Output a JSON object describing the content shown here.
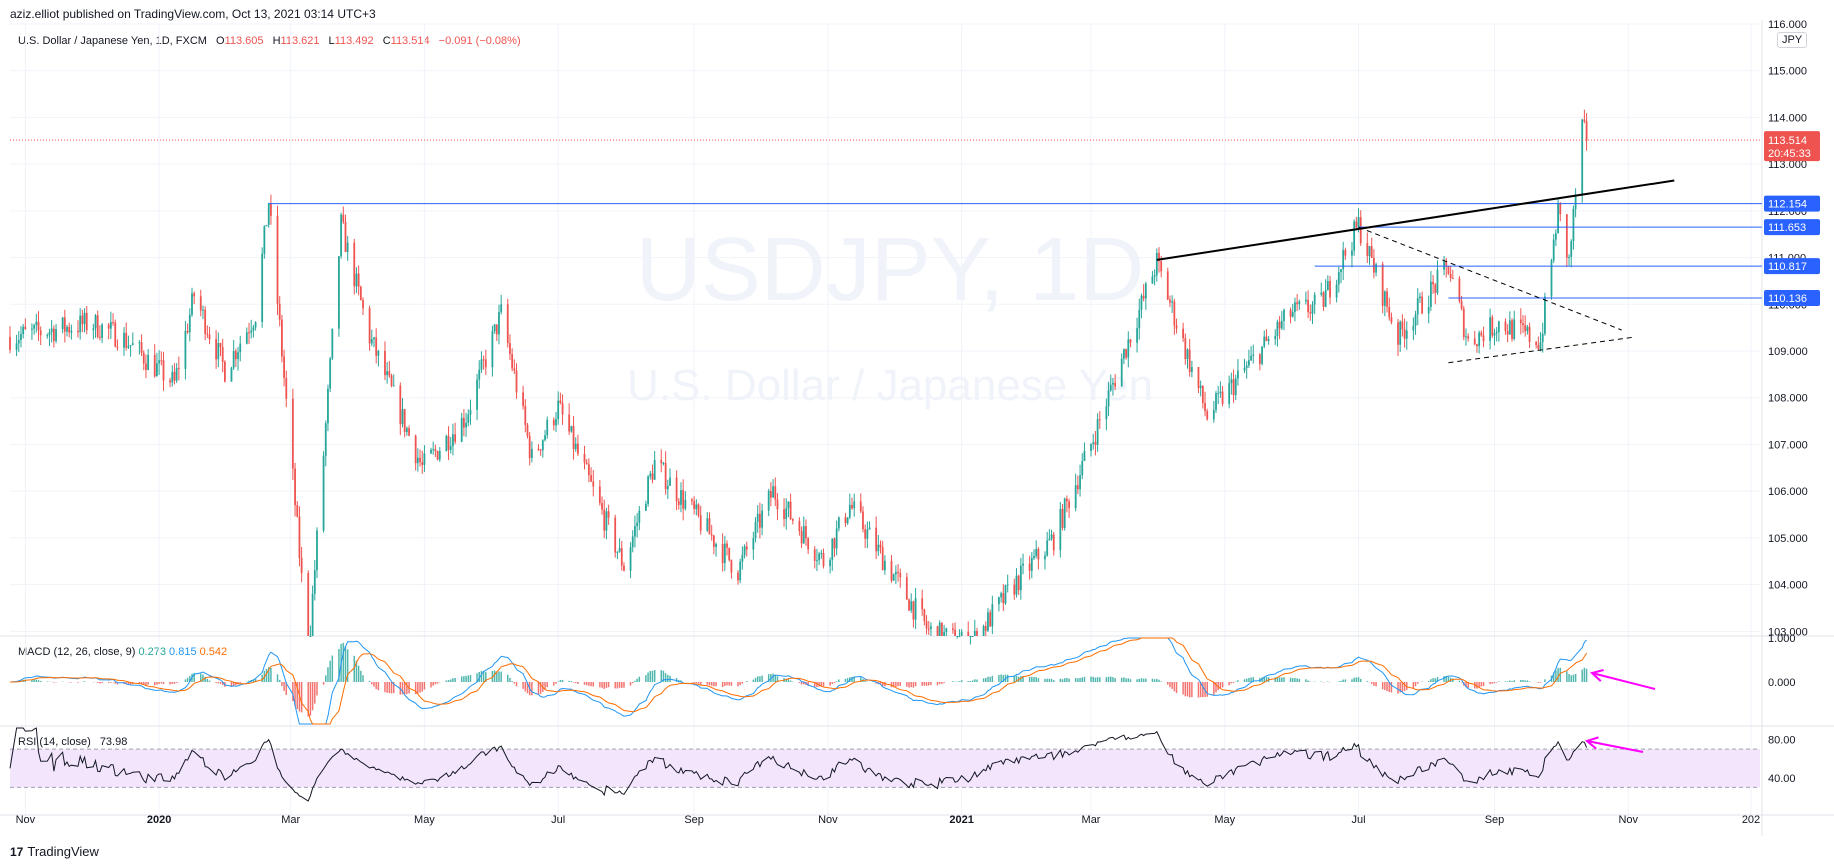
{
  "header": {
    "publish_line": "aziz.elliot published on TradingView.com, Oct 13, 2021 03:14 UTC+3"
  },
  "legend": {
    "symbol": "U.S. Dollar / Japanese Yen, 1D, FXCM",
    "open_label": "O",
    "open": "113.605",
    "high_label": "H",
    "high": "113.621",
    "low_label": "L",
    "low": "113.492",
    "close_label": "C",
    "close": "113.514",
    "change": "−0.091 (−0.08%)"
  },
  "watermark": {
    "ticker": "USDJPY, 1D",
    "name": "U.S. Dollar / Japanese Yen"
  },
  "currency_button": "JPY",
  "macd_legend": {
    "label": "MACD (12, 26, close, 9)",
    "v1": "0.273",
    "v2": "0.815",
    "v3": "0.542"
  },
  "rsi_legend": {
    "label": "RSI (14, close)",
    "value": "73.98"
  },
  "price_tag": {
    "value": "113.514",
    "countdown": "20:45:33"
  },
  "footer": {
    "brand": "TradingView",
    "logo": "17"
  },
  "colors": {
    "up": "#26a69a",
    "down": "#ef5350",
    "level": "#2962ff",
    "rsi_band": "#f3e5fc",
    "macd": "#2196f3",
    "signal": "#ff6d00",
    "arrow": "#ff00ff"
  },
  "chart_data": {
    "type": "candlestick",
    "title": "U.S. Dollar / Japanese Yen, 1D, FXCM",
    "x_ticks": [
      "Nov",
      "2020",
      "Mar",
      "May",
      "Jul",
      "Sep",
      "Nov",
      "2021",
      "Mar",
      "May",
      "Jul",
      "Sep",
      "Nov",
      "202"
    ],
    "price_axis": {
      "ylim": [
        102.9,
        116.0
      ],
      "ticks": [
        "116.000",
        "115.000",
        "114.000",
        "113.000",
        "112.000",
        "111.000",
        "110.000",
        "109.000",
        "108.000",
        "107.000",
        "106.000",
        "105.000",
        "104.000",
        "103.000"
      ]
    },
    "horizontal_levels": [
      "112.154",
      "111.653",
      "110.817",
      "110.136"
    ],
    "last_price": "113.514",
    "price_path": [
      [
        "2019-10-25",
        109.3
      ],
      [
        "2019-11-07",
        109.4
      ],
      [
        "2019-12-01",
        109.6
      ],
      [
        "2019-12-15",
        109.3
      ],
      [
        "2020-01-08",
        108.3
      ],
      [
        "2020-01-17",
        110.2
      ],
      [
        "2020-01-31",
        108.6
      ],
      [
        "2020-02-14",
        109.8
      ],
      [
        "2020-02-20",
        112.2
      ],
      [
        "2020-03-09",
        102.5
      ],
      [
        "2020-03-24",
        111.7
      ],
      [
        "2020-04-06",
        109.3
      ],
      [
        "2020-04-30",
        106.5
      ],
      [
        "2020-05-20",
        107.6
      ],
      [
        "2020-06-05",
        109.8
      ],
      [
        "2020-06-19",
        106.7
      ],
      [
        "2020-07-01",
        107.8
      ],
      [
        "2020-07-31",
        104.4
      ],
      [
        "2020-08-14",
        106.6
      ],
      [
        "2020-09-21",
        104.3
      ],
      [
        "2020-10-07",
        106.0
      ],
      [
        "2020-10-30",
        104.5
      ],
      [
        "2020-11-11",
        105.7
      ],
      [
        "2020-12-17",
        103.0
      ],
      [
        "2021-01-05",
        102.7
      ],
      [
        "2021-01-25",
        104.0
      ],
      [
        "2021-02-12",
        105.0
      ],
      [
        "2021-03-01",
        107.0
      ],
      [
        "2021-03-31",
        110.9
      ],
      [
        "2021-04-23",
        107.6
      ],
      [
        "2021-05-31",
        109.8
      ],
      [
        "2021-06-14",
        110.0
      ],
      [
        "2021-07-01",
        111.7
      ],
      [
        "2021-07-19",
        109.3
      ],
      [
        "2021-08-11",
        110.8
      ],
      [
        "2021-08-20",
        109.2
      ],
      [
        "2021-09-03",
        109.6
      ],
      [
        "2021-09-22",
        109.2
      ],
      [
        "2021-09-30",
        112.0
      ],
      [
        "2021-10-05",
        110.9
      ],
      [
        "2021-10-11",
        113.8
      ],
      [
        "2021-10-13",
        113.514
      ]
    ],
    "macd": {
      "ticks": [
        "1.000",
        "0.000"
      ],
      "values": {
        "histogram": "0.273",
        "macd": "0.815",
        "signal": "0.542"
      }
    },
    "rsi": {
      "ticks": [
        "80.00",
        "40.00"
      ],
      "band": [
        30,
        70
      ],
      "value": "73.98"
    }
  }
}
